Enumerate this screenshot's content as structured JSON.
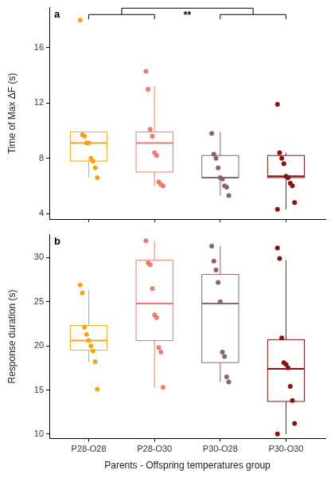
{
  "chart_data": [
    {
      "type": "box",
      "title": "a",
      "y_label": "Time of Max ΔF (s)",
      "categories": [
        "P28-O28",
        "P28-O30",
        "P30-O28",
        "P30-O30"
      ],
      "colors": [
        "#f4a31b",
        "#ee7b6b",
        "#8c6370",
        "#8b1010"
      ],
      "boxes": [
        {
          "whisker_low": 6.6,
          "q1": 7.8,
          "median": 9.1,
          "q3": 9.9,
          "whisker_high": 9.9
        },
        {
          "whisker_low": 6.0,
          "q1": 7.0,
          "median": 9.1,
          "q3": 9.9,
          "whisker_high": 13.2
        },
        {
          "whisker_low": 5.3,
          "q1": 6.6,
          "median": 6.6,
          "q3": 8.2,
          "whisker_high": 9.9
        },
        {
          "whisker_low": 4.3,
          "q1": 6.6,
          "median": 6.7,
          "q3": 8.2,
          "whisker_high": 8.4
        }
      ],
      "points": [
        [
          18.0,
          9.7,
          9.6,
          9.1,
          9.1,
          8.0,
          7.8,
          7.3,
          6.6
        ],
        [
          14.3,
          13.0,
          10.1,
          9.6,
          8.4,
          8.2,
          6.3,
          6.1,
          6.0
        ],
        [
          9.8,
          8.3,
          8.0,
          7.3,
          6.6,
          6.5,
          6.0,
          5.9,
          5.3
        ],
        [
          11.9,
          8.4,
          8.0,
          7.6,
          6.7,
          6.6,
          6.2,
          6.0,
          4.8,
          4.3
        ]
      ],
      "ylim": [
        3.6,
        18.9
      ],
      "yticks": [
        4,
        8,
        12,
        16
      ],
      "grid": false,
      "tick_labels": "y",
      "annotations": [
        {
          "text": "**",
          "groups": [
            [
              0,
              1
            ],
            [
              2,
              3
            ]
          ],
          "y": 18.4
        }
      ]
    },
    {
      "type": "box",
      "title": "b",
      "y_label": "Response duration (s)",
      "x_label": "Parents - Offspring temperatures group",
      "categories": [
        "P28-O28",
        "P28-O30",
        "P30-O28",
        "P30-O30"
      ],
      "colors": [
        "#f4a31b",
        "#ee7b6b",
        "#8c6370",
        "#8b1010"
      ],
      "boxes": [
        {
          "whisker_low": 18.2,
          "q1": 19.5,
          "median": 20.6,
          "q3": 22.3,
          "whisker_high": 26.3
        },
        {
          "whisker_low": 15.3,
          "q1": 20.6,
          "median": 24.8,
          "q3": 29.7,
          "whisker_high": 31.9
        },
        {
          "whisker_low": 15.9,
          "q1": 18.1,
          "median": 24.8,
          "q3": 28.1,
          "whisker_high": 31.3
        },
        {
          "whisker_low": 10.0,
          "q1": 13.7,
          "median": 17.4,
          "q3": 20.7,
          "whisker_high": 29.7
        }
      ],
      "points": [
        [
          26.9,
          26.0,
          22.1,
          21.3,
          20.6,
          20.0,
          19.4,
          18.2,
          15.1
        ],
        [
          31.9,
          29.4,
          29.2,
          26.5,
          23.5,
          23.2,
          19.8,
          19.3,
          15.3
        ],
        [
          31.3,
          29.6,
          28.6,
          27.2,
          25.0,
          19.3,
          18.8,
          16.5,
          15.9
        ],
        [
          31.1,
          29.9,
          20.9,
          18.1,
          17.9,
          17.5,
          15.4,
          13.8,
          11.2,
          10.0
        ]
      ],
      "ylim": [
        9.5,
        32.6
      ],
      "yticks": [
        10,
        15,
        20,
        25,
        30
      ],
      "grid": false
    }
  ]
}
